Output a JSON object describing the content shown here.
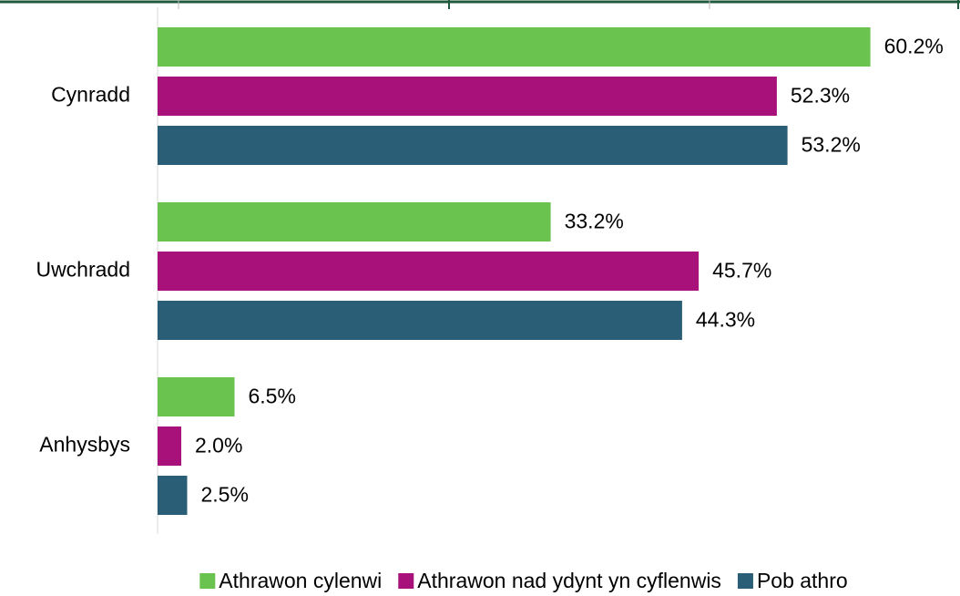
{
  "chart_data": {
    "type": "hbar",
    "categories": [
      "Cynradd",
      "Uwchradd",
      "Anhysbys"
    ],
    "series": [
      {
        "name": "Athrawon cylenwi",
        "color": "#6ac24f",
        "values": [
          60.2,
          33.2,
          6.5
        ],
        "value_labels": [
          "60.2%",
          "33.2%",
          "6.5%"
        ]
      },
      {
        "name": "Athrawon nad ydynt yn cyflenwis",
        "color": "#a8117a",
        "values": [
          52.3,
          45.7,
          2.0
        ],
        "value_labels": [
          "52.3%",
          "45.7%",
          "2.0%"
        ]
      },
      {
        "name": "Pob athro",
        "color": "#2a5e76",
        "values": [
          53.2,
          44.3,
          2.5
        ],
        "value_labels": [
          "53.2%",
          "44.3%",
          "2.5%"
        ]
      }
    ],
    "xlim": [
      0,
      65
    ],
    "legend": "bottom"
  }
}
